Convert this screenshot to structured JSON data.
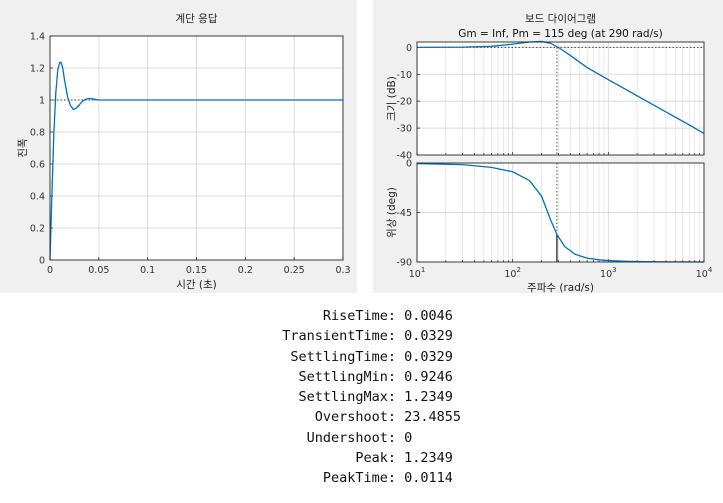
{
  "colors": {
    "line": "#0072BD",
    "axes_bg": "#ffffff",
    "figure_bg": "#f0f0f0",
    "grid": "#dcdcdc"
  },
  "chart_data": [
    {
      "type": "line",
      "title": "계단 응답",
      "xlabel": "시간 (초)",
      "ylabel": "진폭",
      "xlim": [
        0,
        0.3
      ],
      "ylim": [
        0,
        1.4
      ],
      "xticks": [
        "0",
        "0.05",
        "0.1",
        "0.15",
        "0.2",
        "0.25",
        "0.3"
      ],
      "yticks": [
        "0",
        "0.2",
        "0.4",
        "0.6",
        "0.8",
        "1",
        "1.2",
        "1.4"
      ],
      "grid": true,
      "reference_line": 1,
      "series": [
        {
          "x": [
            0,
            0.002,
            0.004,
            0.006,
            0.008,
            0.01,
            0.0114,
            0.013,
            0.015,
            0.018,
            0.021,
            0.024,
            0.027,
            0.03,
            0.033,
            0.036,
            0.04,
            0.045,
            0.05,
            0.06,
            0.08,
            0.1,
            0.15,
            0.2,
            0.25,
            0.3
          ],
          "y": [
            0,
            0.42,
            0.8,
            1.05,
            1.19,
            1.235,
            1.2349,
            1.2,
            1.12,
            1.02,
            0.965,
            0.94,
            0.95,
            0.97,
            0.99,
            1.004,
            1.01,
            1.005,
            1.0,
            1.0,
            1.0,
            1.0,
            1.0,
            1.0,
            1.0,
            1.0
          ]
        }
      ]
    },
    {
      "type": "line",
      "title": "보드 다이어그램",
      "subtitle": "Gm = Inf,  Pm = 115 deg (at 290 rad/s)",
      "xlabel": "주파수  (rad/s)",
      "xscale": "log",
      "xlim": [
        10,
        10000
      ],
      "xtick_base": "10",
      "xtick_exponents": [
        "1",
        "2",
        "3",
        "4"
      ],
      "crossover_frequency": 290,
      "magnitude": {
        "ylabel": "크기 (dB)",
        "ylim": [
          -40,
          2
        ],
        "yticks": [
          "0",
          "-10",
          "-20",
          "-30",
          "-40"
        ],
        "reference_line": 0,
        "x": [
          10,
          30,
          60,
          100,
          150,
          200,
          250,
          300,
          400,
          600,
          1000,
          2000,
          4000,
          7000,
          10000
        ],
        "y": [
          0,
          0.1,
          0.4,
          1.2,
          2.0,
          2.2,
          1.5,
          0.0,
          -3,
          -7.5,
          -12,
          -18,
          -24,
          -28.8,
          -32
        ]
      },
      "phase": {
        "ylabel": "위상 (deg)",
        "ylim": [
          -90,
          0
        ],
        "yticks": [
          "0",
          "-45",
          "-90"
        ],
        "phase_at_crossover": -65,
        "x": [
          10,
          30,
          60,
          100,
          150,
          200,
          250,
          290,
          350,
          450,
          600,
          800,
          1000,
          1500,
          2000,
          3000,
          5000,
          10000
        ],
        "y": [
          -0.5,
          -1.5,
          -4,
          -8,
          -16,
          -30,
          -52,
          -65,
          -76,
          -83,
          -86.5,
          -88,
          -88.7,
          -89.3,
          -89.6,
          -89.8,
          -89.9,
          -90
        ]
      }
    }
  ],
  "stats": [
    {
      "name": "RiseTime:",
      "value": "0.0046"
    },
    {
      "name": "TransientTime:",
      "value": "0.0329"
    },
    {
      "name": "SettlingTime:",
      "value": "0.0329"
    },
    {
      "name": "SettlingMin:",
      "value": "0.9246"
    },
    {
      "name": "SettlingMax:",
      "value": "1.2349"
    },
    {
      "name": "Overshoot:",
      "value": "23.4855"
    },
    {
      "name": "Undershoot:",
      "value": "0"
    },
    {
      "name": "Peak:",
      "value": "1.2349"
    },
    {
      "name": "PeakTime:",
      "value": "0.0114"
    }
  ]
}
